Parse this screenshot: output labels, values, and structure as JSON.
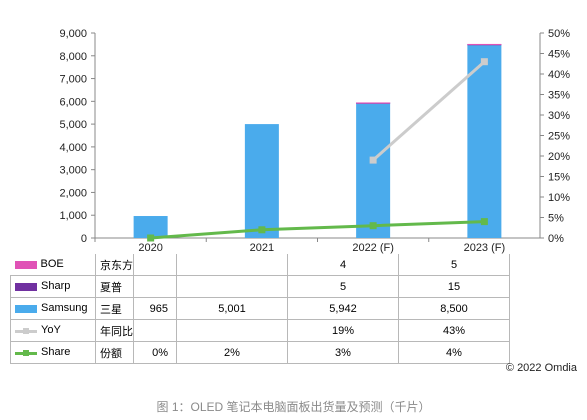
{
  "colors": {
    "boe": "#e052b6",
    "sharp": "#7030a0",
    "samsung": "#4aabec",
    "yoy": "#cccccc",
    "share": "#63b94b"
  },
  "chart_data": {
    "type": "bar",
    "categories": [
      "2020",
      "2021",
      "2022 (F)",
      "2023 (F)"
    ],
    "stack_series": [
      {
        "name": "Samsung",
        "values": [
          965,
          5001,
          5942,
          8500
        ]
      },
      {
        "name": "Sharp",
        "values": [
          null,
          null,
          5,
          15
        ]
      },
      {
        "name": "BOE",
        "values": [
          null,
          null,
          4,
          5
        ]
      }
    ],
    "line_series": [
      {
        "name": "YoY",
        "axis": "right",
        "values": [
          null,
          null,
          19,
          43
        ],
        "unit": "%"
      },
      {
        "name": "Share",
        "axis": "right",
        "values": [
          0,
          2,
          3,
          4
        ],
        "unit": "%"
      }
    ],
    "ylim": [
      0,
      9000
    ],
    "yticks": [
      "0",
      "1,000",
      "2,000",
      "3,000",
      "4,000",
      "5,000",
      "6,000",
      "7,000",
      "8,000",
      "9,000"
    ],
    "y2lim": [
      0,
      50
    ],
    "y2ticks": [
      "0%",
      "5%",
      "10%",
      "15%",
      "20%",
      "25%",
      "30%",
      "35%",
      "40%",
      "45%",
      "50%"
    ],
    "grid": false
  },
  "table": {
    "rows": [
      {
        "key": "BOE",
        "swatch": "box",
        "color_key": "boe",
        "cn": "京东方",
        "v2020": "",
        "v2021": "",
        "v2022": "4",
        "v2023": "5"
      },
      {
        "key": "Sharp",
        "swatch": "box",
        "color_key": "sharp",
        "cn": "夏普",
        "v2020": "",
        "v2021": "",
        "v2022": "5",
        "v2023": "15"
      },
      {
        "key": "Samsung",
        "swatch": "box",
        "color_key": "samsung",
        "cn": "三星",
        "v2020": "965",
        "v2021": "5,001",
        "v2022": "5,942",
        "v2023": "8,500"
      },
      {
        "key": "YoY",
        "swatch": "line",
        "color_key": "yoy",
        "cn": "年同比",
        "v2020": "",
        "v2021": "",
        "v2022": "19%",
        "v2023": "43%"
      },
      {
        "key": "Share",
        "swatch": "line",
        "color_key": "share",
        "cn": "份额",
        "v2020": "0%",
        "v2021": "2%",
        "v2022": "3%",
        "v2023": "4%"
      }
    ]
  },
  "copyright": "© 2022 Omdia",
  "caption": "图 1：OLED 笔记本电脑面板出货量及预测（千片）"
}
